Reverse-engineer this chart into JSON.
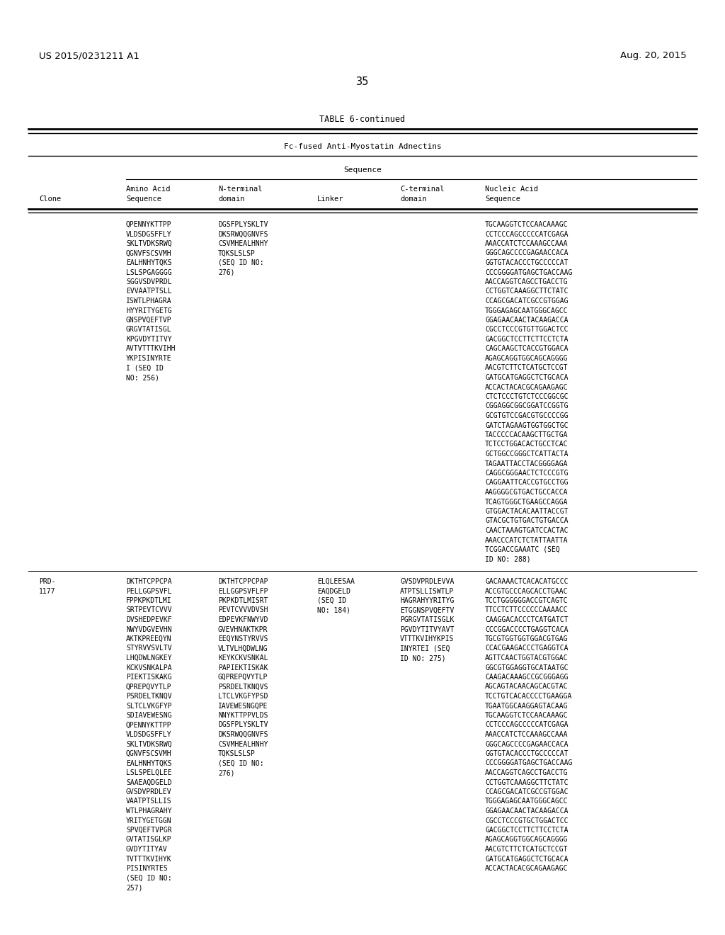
{
  "bg_color": "#ffffff",
  "header_left": "US 2015/0231211 A1",
  "header_right": "Aug. 20, 2015",
  "page_number": "35",
  "table_title": "TABLE 6-continued",
  "table_subtitle": "Fc-fused Anti-Myostatin Adnectins",
  "row1_aa": [
    "QPENNYKTTPP",
    "VLDSDGSFFLY",
    "SKLTVDKSRWQ",
    "QGNVFSCSVMH",
    "EALHNHYTQKS",
    "LSLSPGAGGGG",
    "SGGVSDVPRDL",
    "EVVAATPTSLL",
    "ISWTLPHAGRA",
    "HYYRITYGETG",
    "GNSPVQEFTVP",
    "GRGVTATISGL",
    "KPGVDYTITVY",
    "AVTVTTTKVIHH",
    "YKPISINYRTE",
    "I (SEQ ID",
    "NO: 256)"
  ],
  "row1_nterm": [
    "DGSFPLYSKLTV",
    "DKSRWQQGNVFS",
    "CSVMHEALHNHY",
    "TQKSLSLSP",
    "(SEQ ID NO:",
    "276)"
  ],
  "row1_nuc": [
    "TGCAAGGTCTCCAACAAAGC",
    "CCTCCCAGCCCCCATCGAGA",
    "AAACCATCTCCAAAGCCAAA",
    "GGGCAGCCCCGAGAACCACA",
    "GGTGTACACCCTGCCCCCAT",
    "CCCGGGGATGAGCTGACCAAG",
    "AACCAGGTCAGCCTGACCTG",
    "CCTGGTCAAAGGCTTCTATC",
    "CCAGCGACATCGCCGTGGAG",
    "TGGGAGAGCAATGGGCAGCC",
    "GGAGAACAACTACAAGACCA",
    "CGCCTCCCGTGTTGGACTCC",
    "GACGGCTCCTTCTTCCTCTA",
    "CAGCAAGCTCACCGTGGACA",
    "AGAGCAGGTGGCAGCAGGGG",
    "AACGTCTTCTCATGCTCCGT",
    "GATGCATGAGGCTCTGCACA",
    "ACCACTACACGCAGAAGAGC",
    "CTCTCCCTGTCTCCCGGCGC",
    "CGGAGGCGGCGGATCCGGTG",
    "GCGTGTCCGACGTGCCCCGG",
    "GATCTAGAAGTGGTGGCTGC",
    "TACCCCCACAAGCTTGCTGA",
    "TCTCCTGGACACTGCCTCAC",
    "GCTGGCCGGGCTCATTACTA",
    "TAGAATTACCTACGGGGAGA",
    "CAGGCGGGAACTCTCCCGTG",
    "CAGGAATTCACCGTGCCTGG",
    "AAGGGGCGTGACTGCCACCA",
    "TCAGTGGGCTGAAGCCAGGA",
    "GTGGACTACACAATTACCGT",
    "GTACGCTGTGACTGTGACCA",
    "CAACTAAAGTGATCCACTAC",
    "AAACCCATCTCTATTAATTA",
    "TCGGACCGAAATC (SEQ",
    "ID NO: 288)"
  ],
  "row2_clone": [
    "PRD-",
    "1177"
  ],
  "row2_aa": [
    "DKTHTCPPCPA",
    "PELLGGPSVFL",
    "FPPKPKDTLMI",
    "SRTPEVTCVVV",
    "DVSHEDPEVKF",
    "NWYVDGVEVHN",
    "AKTKPREEQYN",
    "STYRVVSVLTV",
    "LHQDWLNGKEY",
    "KCKVSNKALPA",
    "PIEKTISKAKG",
    "QPREPQVYTLP",
    "PSRDELTKNQV",
    "SLTCLVKGFYP",
    "SDIAVEWESNG",
    "QPENNYKTTPP",
    "VLDSDGSFFLY",
    "SKLTVDKSRWQ",
    "QGNVFSCSVMH",
    "EALHNHYTQKS",
    "LSLSPELQLEE",
    "SAAEAQDGELD",
    "GVSDVPRDLEV",
    "VAATPTSLLIS",
    "WTLPHAGRAHY",
    "YRITYGETGGN",
    "SPVQEFTVPGR",
    "GVTATISGLKP",
    "GVDYTITYAV",
    "TVTTTKVIHYK",
    "PISINYRTES",
    "(SEQ ID NO:",
    "257)"
  ],
  "row2_nterm": [
    "DKTHTCPPCPAP",
    "ELLGGPSVFLFP",
    "PKPKDTLMISRT",
    "PEVTCVVVDVSH",
    "EDPEVKFNWYVD",
    "GVEVHNAKTKPR",
    "EEQYNSTYRVVS",
    "VLTVLHQDWLNG",
    "KEYKCKVSNKAL",
    "PAPIEKTISKAK",
    "GQPREPQVYTLP",
    "PSRDELTKNQVS",
    "LTCLVKGFYPSD",
    "IAVEWESNGQPE",
    "NNYKTTPPVLDS",
    "DGSFPLYSKLTV",
    "DKSRWQQGNVFS",
    "CSVMHEALHNHY",
    "TQKSLSLSP",
    "(SEQ ID NO:",
    "276)"
  ],
  "row2_linker": [
    "ELQLEESAA",
    "EAQDGELD",
    "(SEQ ID",
    "NO: 184)"
  ],
  "row2_cterm": [
    "GVSDVPRDLEVVA",
    "ATPTSLLISWTLP",
    "HAGRAHYYRITYG",
    "ETGGNSPVQEFTV",
    "PGRGVTATISGLK",
    "PGVDYTITVYAVT",
    "VTTTKVIHYKPIS",
    "INYRTEI (SEQ",
    "ID NO: 275)"
  ],
  "row2_nuc": [
    "GACAAAACTCACACATGCCC",
    "ACCGTGCCCAGCACCTGAAC",
    "TCCTGGGGGGACCGTCAGTC",
    "TTCCTCTTCCCCCCAAAACC",
    "CAAGGACACCCTCATGATCT",
    "CCCGGACCCCTGAGGTCACA",
    "TGCGTGGTGGTGGACGTGAG",
    "CCACGAAGACCCTGAGGTCA",
    "AGTTCAACTGGTACGTGGAC",
    "GGCGTGGAGGTGCATAATGC",
    "CAAGACAAAGCCGCGGGAGG",
    "AGCAGTACAACAGCACGTAC",
    "TCCTGTCACACCCCTGAAGGA",
    "TGAATGGCAAGGAGTACAAG",
    "TGCAAGGTCTCCAACAAAGC",
    "CCTCCCAGCCCCCATCGAGA",
    "AAACCATCTCCAAAGCCAAA",
    "GGGCAGCCCCGAGAACCACA",
    "GGTGTACACCCTGCCCCCAT",
    "CCCGGGGATGAGCTGACCAAG",
    "AACCAGGTCAGCCTGACCTG",
    "CCTGGTCAAAGGCTTCTATC",
    "CCAGCGACATCGCCGTGGAC",
    "TGGGAGAGCAATGGGCAGCC",
    "GGAGAACAACTACAAGACCA",
    "CGCCTCCCGTGCTGGACTCC",
    "GACGGCTCCTTCTTCCTCTA",
    "AGAGCAGGTGGCAGCAGGGG",
    "AACGTCTTCTCATGCTCCGT",
    "GATGCATGAGGCTCTGCACA",
    "ACCACTACACGCAGAAGAGC"
  ]
}
